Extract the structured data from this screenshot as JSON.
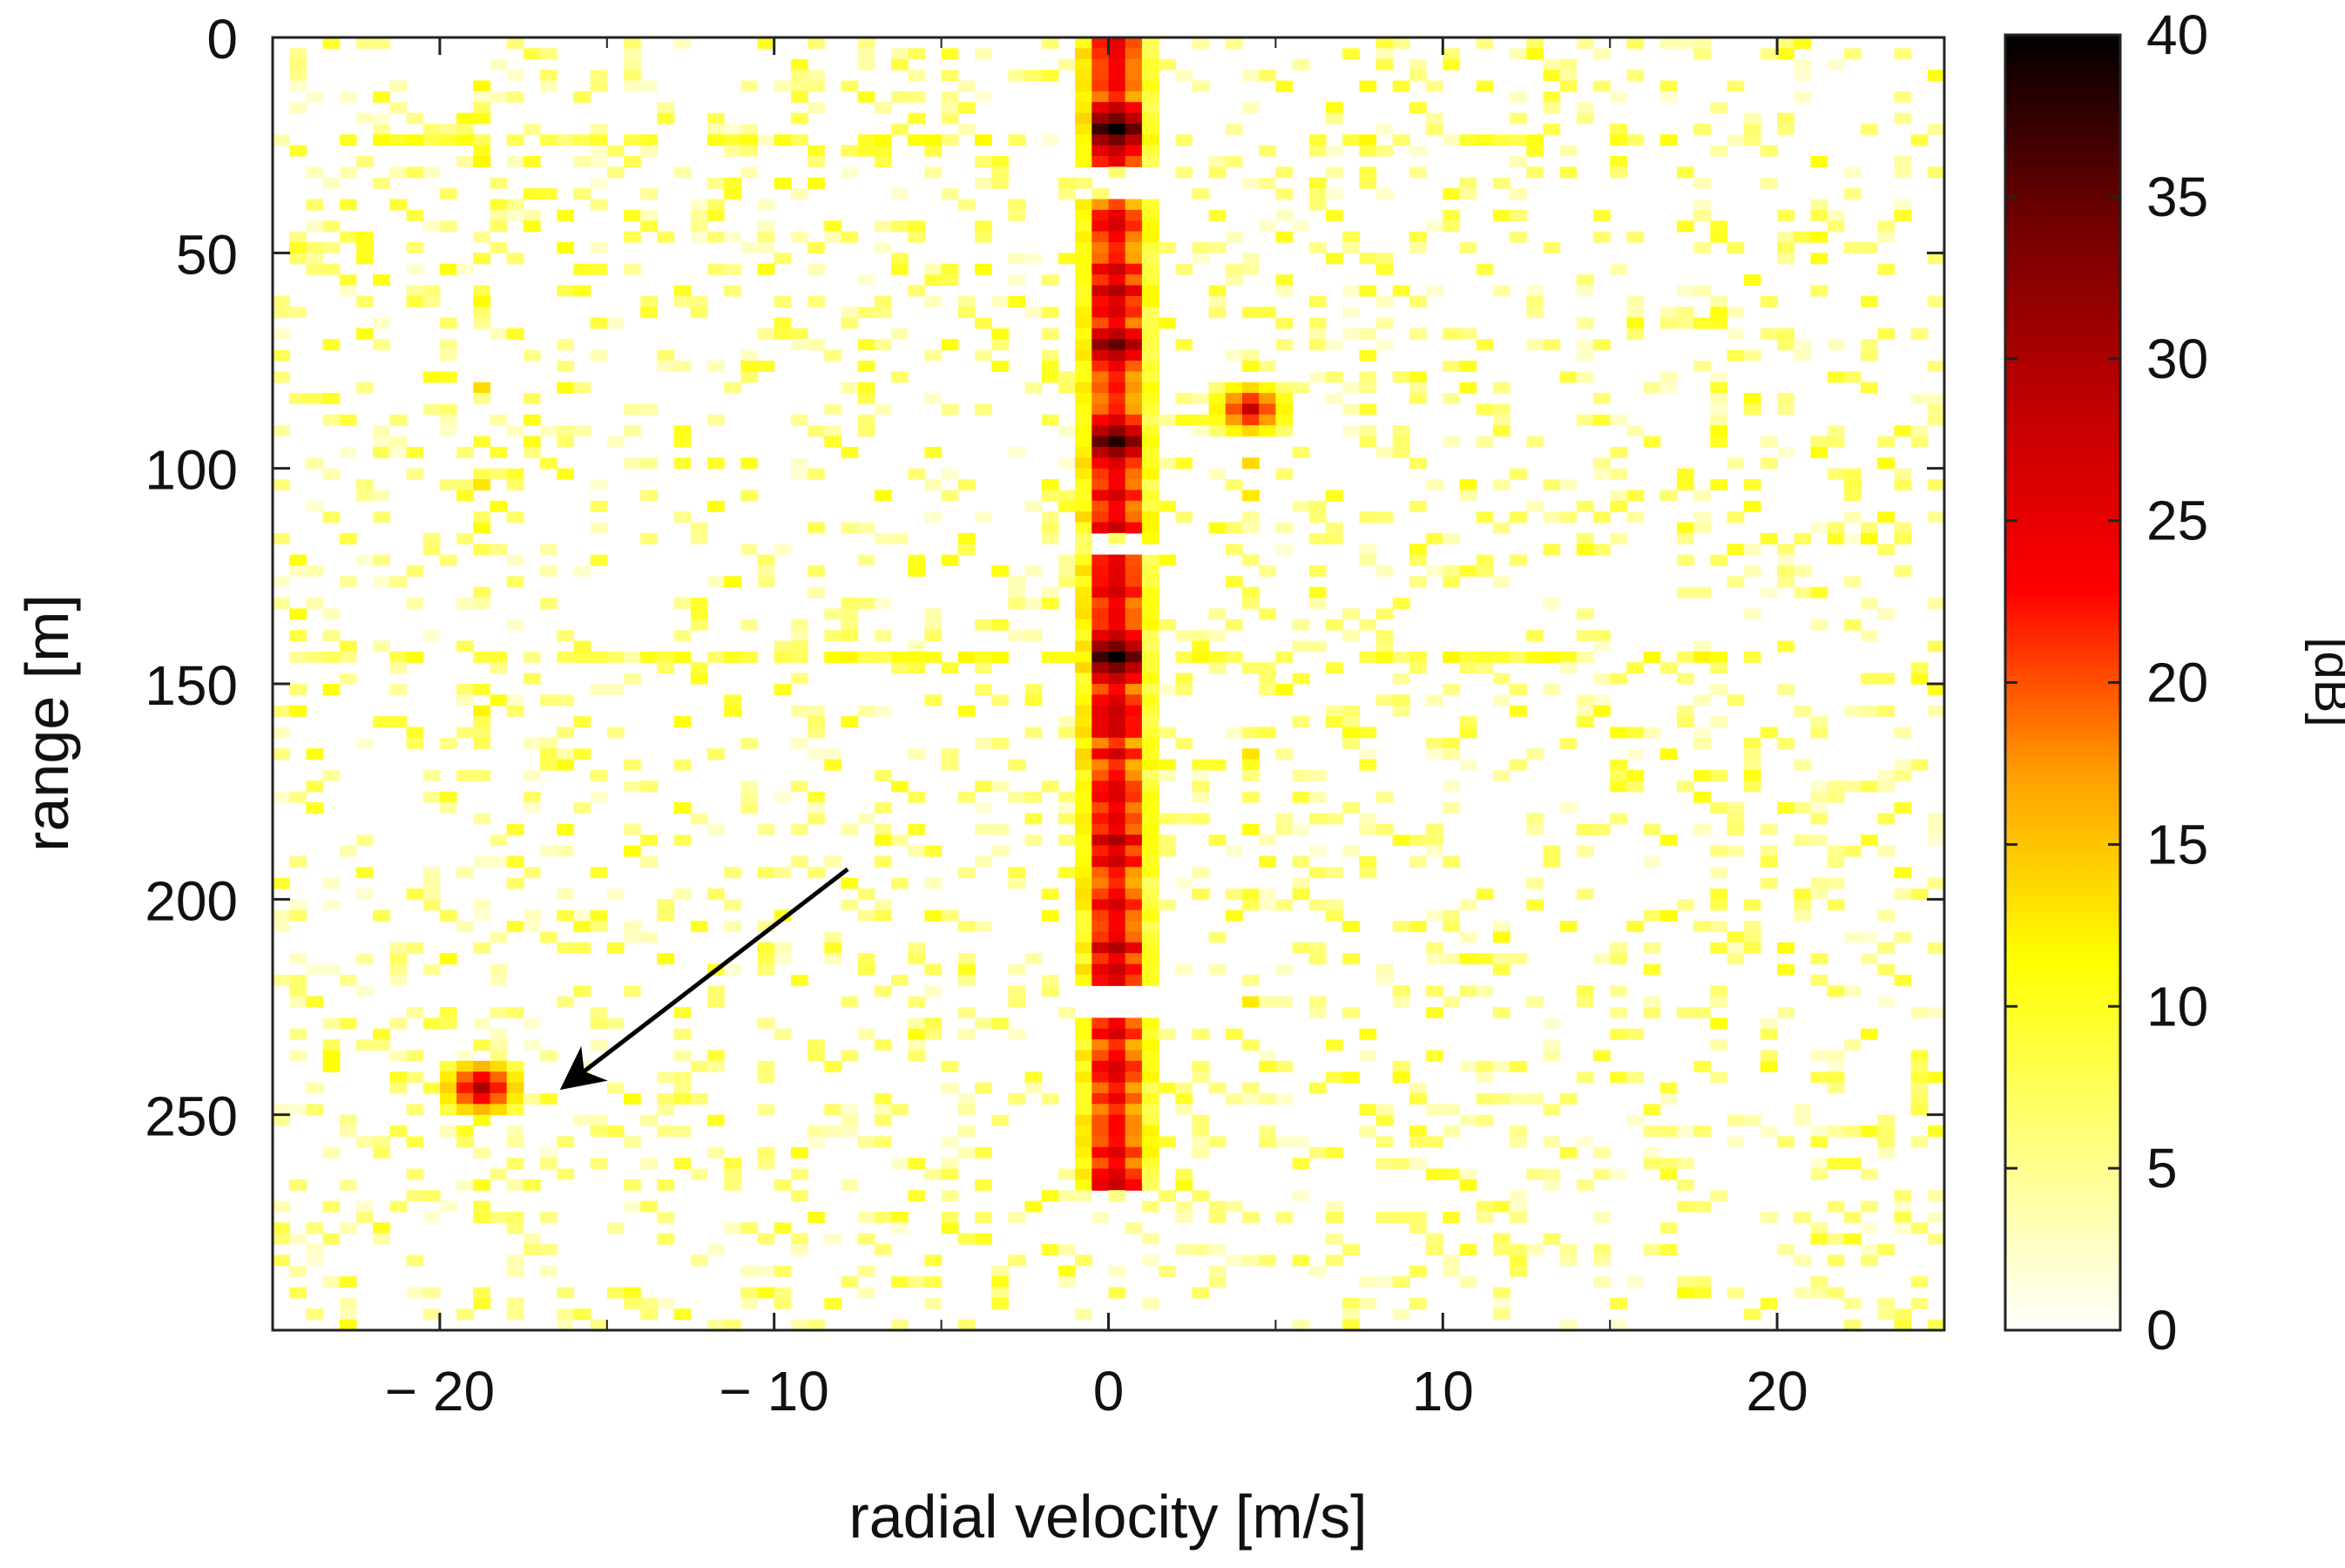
{
  "chart_data": {
    "type": "heatmap",
    "title": "",
    "xlabel": "radial velocity [m/s]",
    "ylabel": "range [m]",
    "xlim": [
      -25,
      25
    ],
    "ylim": [
      0,
      300
    ],
    "y_inverted": true,
    "x_ticks": [
      -20,
      -10,
      0,
      10,
      20
    ],
    "x_tick_labels": [
      "− 20",
      "− 10",
      "0",
      "10",
      "20"
    ],
    "y_ticks": [
      0,
      50,
      100,
      150,
      200,
      250
    ],
    "y_tick_labels": [
      "0",
      "50",
      "100",
      "150",
      "200",
      "250"
    ],
    "colorbar": {
      "label": "[dB]",
      "min": 0,
      "max": 40,
      "ticks": [
        0,
        5,
        10,
        15,
        20,
        25,
        30,
        35,
        40
      ],
      "tick_labels": [
        "0",
        "5",
        "10",
        "15",
        "20",
        "25",
        "30",
        "35",
        "40"
      ],
      "colormap": "inverted hot",
      "colors": [
        "#ffffff",
        "#ffff80",
        "#ffff00",
        "#ffa000",
        "#ff0000",
        "#c00000",
        "#700000",
        "#000000"
      ]
    },
    "grid": false,
    "stationary_returns": {
      "velocity_ms": 0,
      "range_segments_m": [
        [
          0,
          30
        ],
        [
          38,
          115
        ],
        [
          122,
          222
        ],
        [
          228,
          268
        ]
      ],
      "strong_peaks": [
        {
          "range_m": 22,
          "level_db": 40
        },
        {
          "range_m": 58,
          "level_db": 30
        },
        {
          "range_m": 70,
          "level_db": 35
        },
        {
          "range_m": 93,
          "level_db": 38
        },
        {
          "range_m": 143,
          "level_db": 40
        },
        {
          "range_m": 185,
          "level_db": 30
        },
        {
          "range_m": 212,
          "level_db": 30
        }
      ]
    },
    "sidelobe_rows": [
      {
        "range_m": 23,
        "level_db": 12
      },
      {
        "range_m": 144,
        "level_db": 12
      }
    ],
    "targets": [
      {
        "velocity_ms": 4,
        "range_m": 86,
        "level_db": 28
      },
      {
        "velocity_ms": -18.8,
        "range_m": 243,
        "level_db": 30
      }
    ],
    "annotation": {
      "type": "arrow",
      "from": {
        "velocity_ms": -7.8,
        "range_m": 193
      },
      "to": {
        "velocity_ms": -16.2,
        "range_m": 243
      },
      "points_to": "moving target at about -19 m/s, 243 m"
    },
    "noise_floor_db": [
      0,
      10
    ]
  }
}
